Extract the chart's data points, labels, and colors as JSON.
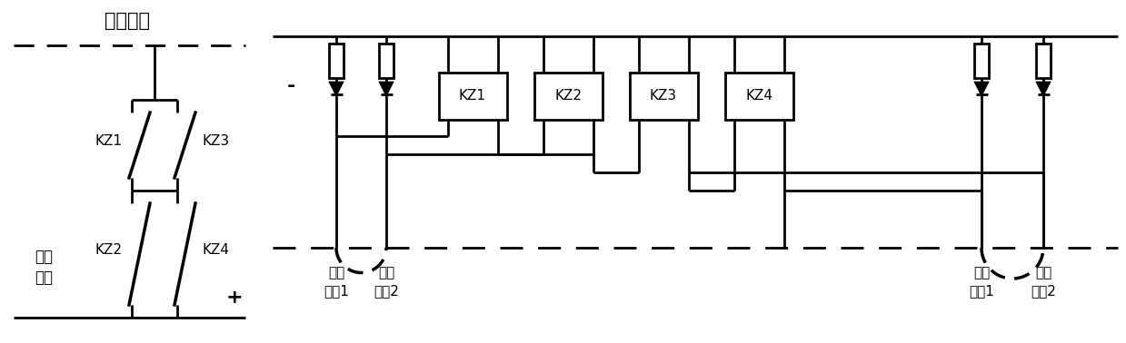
{
  "background": "white",
  "line_color": "black",
  "lw": 2.0,
  "left_panel": {
    "label_yi_qi": "仪器供电",
    "label_fei_xing_1": "飞行",
    "label_fei_xing_2": "供电",
    "label_plus": "+",
    "label_kz1": "KZ1",
    "label_kz2": "KZ2",
    "label_kz3": "KZ3",
    "label_kz4": "KZ4"
  },
  "right_panel": {
    "minus_label": "-",
    "kz_labels": [
      "KZ1",
      "KZ2",
      "KZ3",
      "KZ4"
    ],
    "jt1": "接通",
    "jt2": "接通",
    "jt1_sub": "控制1",
    "jt2_sub": "控制2",
    "dk1": "断开",
    "dk2": "断开",
    "dk1_sub": "控制1",
    "dk2_sub": "控制2"
  }
}
